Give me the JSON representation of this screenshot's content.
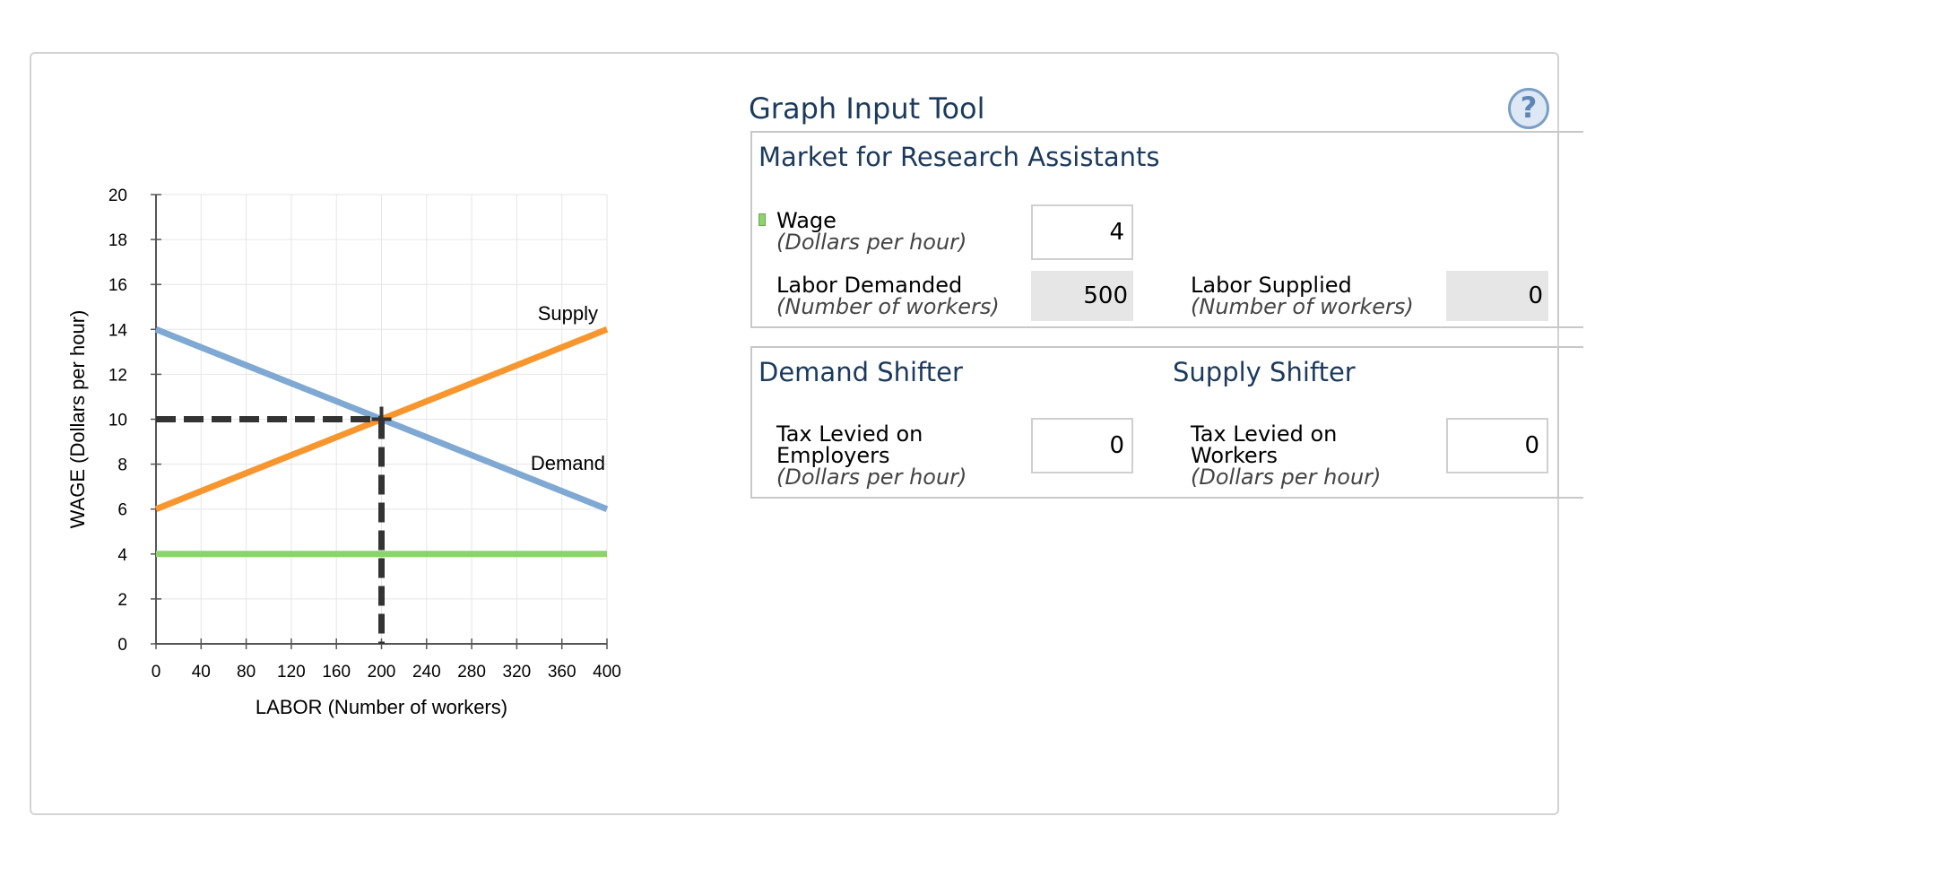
{
  "tool": {
    "title": "Graph Input Tool",
    "help": "?"
  },
  "market": {
    "title": "Market for Research Assistants",
    "wage_label": "Wage",
    "wage_unit": "(Dollars per hour)",
    "wage_value": "4",
    "demanded_label": "Labor Demanded",
    "demanded_unit": "(Number of workers)",
    "demanded_value": "500",
    "supplied_label": "Labor Supplied",
    "supplied_unit": "(Number of workers)",
    "supplied_value": "0"
  },
  "demand_shifter": {
    "title": "Demand Shifter",
    "label_1": "Tax Levied on",
    "label_2": "Employers",
    "unit": "(Dollars per hour)",
    "value": "0"
  },
  "supply_shifter": {
    "title": "Supply Shifter",
    "label_1": "Tax Levied on",
    "label_2": "Workers",
    "unit": "(Dollars per hour)",
    "value": "0"
  },
  "colors": {
    "demand": "#7fa9d3",
    "supply": "#f7962e",
    "wage_line": "#8fd16a",
    "guide": "#333333",
    "grid": "#e6e6e6",
    "title": "#1b3a5c"
  },
  "chart_data": {
    "type": "line",
    "xlabel": "LABOR (Number of workers)",
    "ylabel": "WAGE (Dollars per hour)",
    "xlim": [
      0,
      400
    ],
    "ylim": [
      0,
      20
    ],
    "x_ticks": [
      0,
      40,
      80,
      120,
      160,
      200,
      240,
      280,
      320,
      360,
      400
    ],
    "y_ticks": [
      0,
      2,
      4,
      6,
      8,
      10,
      12,
      14,
      16,
      18,
      20
    ],
    "grid": true,
    "series": [
      {
        "name": "Demand",
        "x": [
          0,
          400
        ],
        "y": [
          14,
          6
        ]
      },
      {
        "name": "Supply",
        "x": [
          0,
          400
        ],
        "y": [
          6,
          14
        ]
      },
      {
        "x": [
          0,
          400
        ],
        "y": [
          4,
          4
        ]
      }
    ],
    "equilibrium": {
      "x": 200,
      "y": 10
    }
  }
}
